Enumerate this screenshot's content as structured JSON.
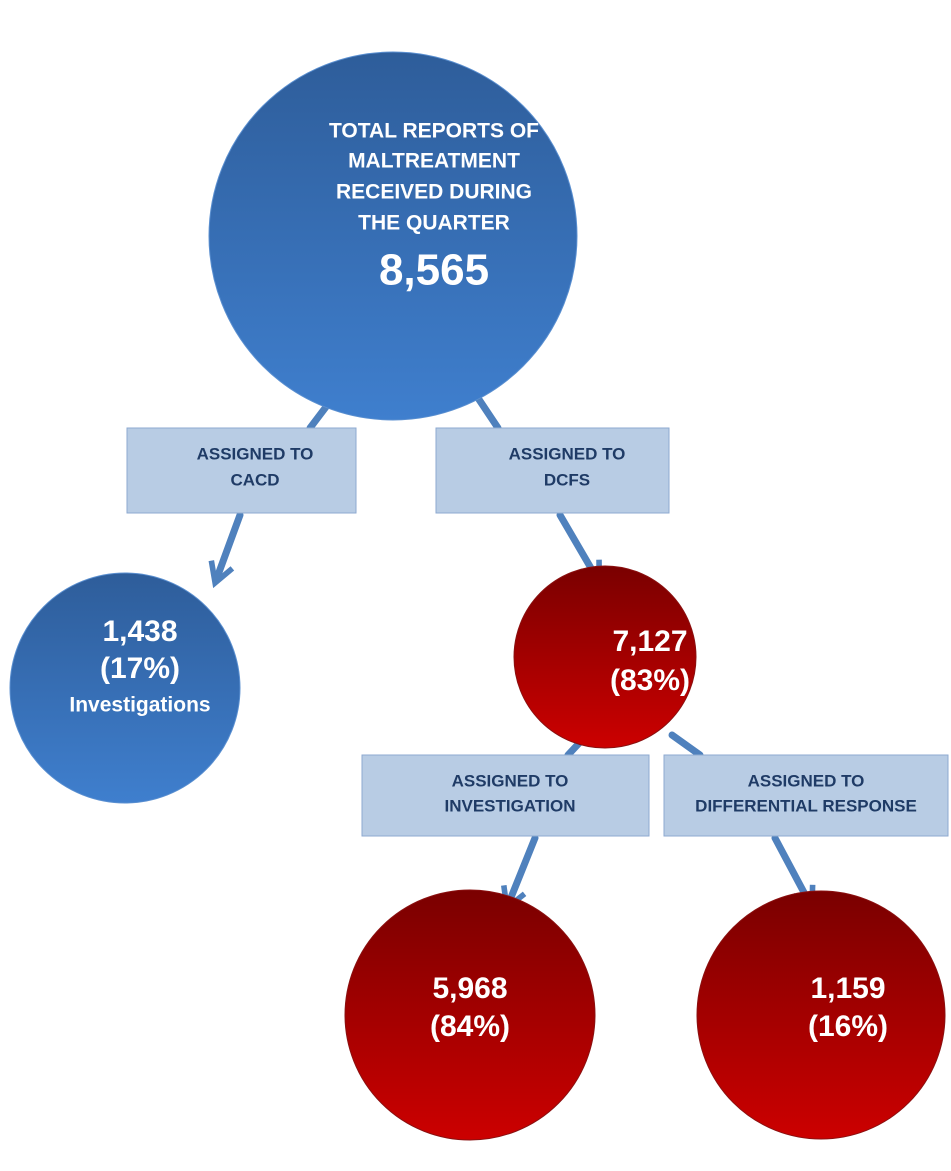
{
  "nodes": [
    {
      "lines": [
        "TOTAL REPORTS OF",
        "MALTREATMENT",
        "RECEIVED DURING",
        "THE QUARTER"
      ],
      "value": "8,565"
    },
    {
      "lines": [
        "1,438",
        "(17%)"
      ],
      "note": "Investigations"
    },
    {
      "lines": [
        "7,127",
        "(83%)"
      ]
    },
    {
      "lines": [
        "5,968",
        "(84%)"
      ]
    },
    {
      "lines": [
        "1,159",
        "(16%)"
      ]
    }
  ],
  "boxes": [
    {
      "lines": [
        "ASSIGNED TO",
        "CACD"
      ]
    },
    {
      "lines": [
        "ASSIGNED TO",
        "DCFS"
      ]
    },
    {
      "lines": [
        "ASSIGNED TO",
        "INVESTIGATION"
      ]
    },
    {
      "lines": [
        "ASSIGNED TO",
        "DIFFERENTIAL RESPONSE"
      ]
    }
  ]
}
